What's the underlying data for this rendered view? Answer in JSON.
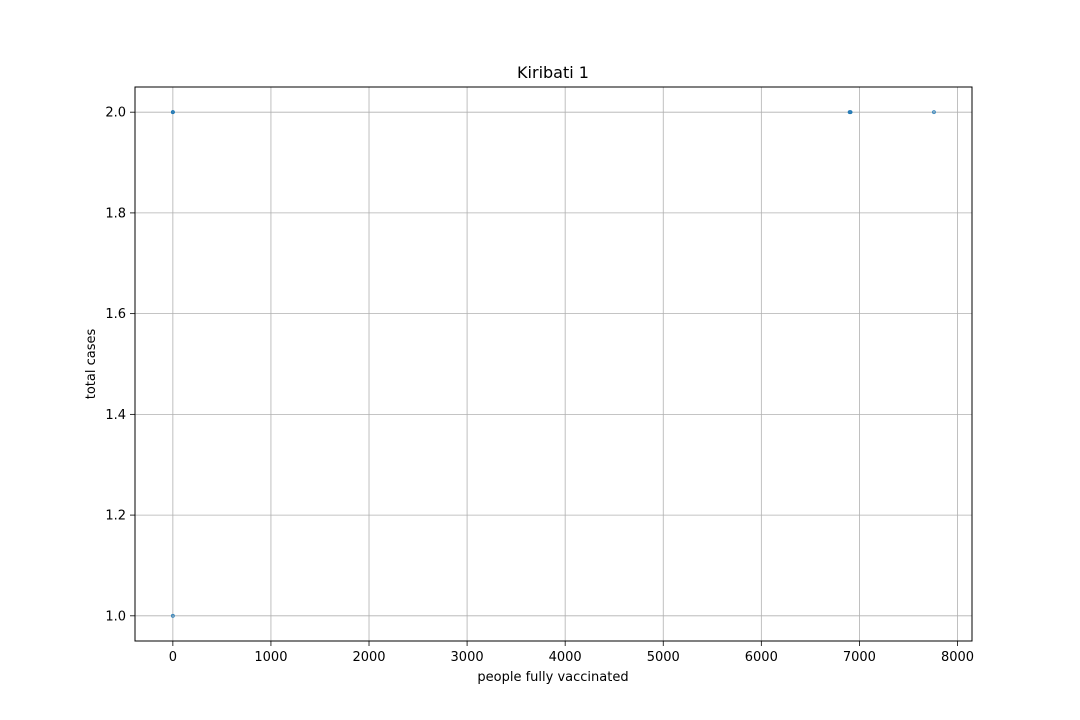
{
  "chart_data": {
    "type": "scatter",
    "title": "Kiribati 1",
    "xlabel": "people fully vaccinated",
    "ylabel": "total cases",
    "xlim": [
      -386,
      8148
    ],
    "ylim": [
      0.95,
      2.05
    ],
    "xticks": [
      0,
      1000,
      2000,
      3000,
      4000,
      5000,
      6000,
      7000,
      8000
    ],
    "yticks": [
      1.0,
      1.2,
      1.4,
      1.6,
      1.8,
      2.0
    ],
    "xtick_labels": [
      "0",
      "1000",
      "2000",
      "3000",
      "4000",
      "5000",
      "6000",
      "7000",
      "8000"
    ],
    "ytick_labels": [
      "1.0",
      "1.2",
      "1.4",
      "1.6",
      "1.8",
      "2.0"
    ],
    "grid": true,
    "marker_color": "#1f77b4",
    "points": [
      {
        "x": 0,
        "y": 1.0
      },
      {
        "x": 0,
        "y": 2.0
      },
      {
        "x": 0,
        "y": 2.0
      },
      {
        "x": 0,
        "y": 2.0
      },
      {
        "x": 6900,
        "y": 2.0
      },
      {
        "x": 6905,
        "y": 2.0
      },
      {
        "x": 6910,
        "y": 2.0
      },
      {
        "x": 7760,
        "y": 2.0
      }
    ]
  }
}
